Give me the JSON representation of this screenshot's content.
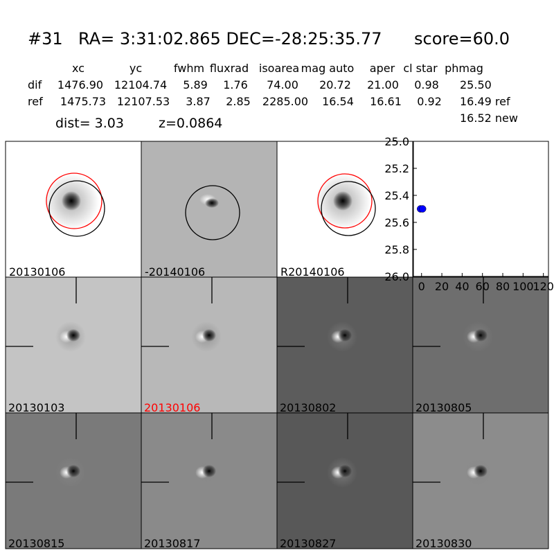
{
  "header": {
    "id": "#31",
    "coords": "RA= 3:31:02.865 DEC=-28:25:35.77",
    "score": "score=60.0"
  },
  "table": {
    "columns": [
      "xc",
      "yc",
      "fwhm",
      "fluxrad",
      "isoarea",
      "mag auto",
      "aper",
      "cl star",
      "phmag"
    ],
    "rows": [
      [
        "dif",
        "1476.90",
        "12104.74",
        "5.89",
        "1.76",
        "74.00",
        "20.72",
        "21.00",
        "0.98",
        "25.50"
      ],
      [
        "ref",
        "1475.73",
        "12107.53",
        "3.87",
        "2.85",
        "2285.00",
        "16.54",
        "16.61",
        "0.92",
        "16.49 ref"
      ]
    ],
    "extra": "16.52 new"
  },
  "dist": "dist=  3.03",
  "z": "z=0.0864",
  "stamps": [
    "20130106",
    "-20140106",
    "R20140106"
  ],
  "epochs": [
    {
      "label": "20130103",
      "color": "#000000"
    },
    {
      "label": "20130106",
      "color": "#ff0000"
    },
    {
      "label": "20130802",
      "color": "#000000"
    },
    {
      "label": "20130805",
      "color": "#000000"
    },
    {
      "label": "20130815",
      "color": "#000000"
    },
    {
      "label": "20130817",
      "color": "#000000"
    },
    {
      "label": "20130827",
      "color": "#000000"
    },
    {
      "label": "20130830",
      "color": "#000000"
    }
  ],
  "chart_data": {
    "type": "scatter",
    "x": [
      -1,
      1
    ],
    "y": [
      25.5,
      25.5
    ],
    "color": "#0000ff",
    "xlim": [
      -8,
      125
    ],
    "ylim": [
      26,
      25
    ],
    "xticks": [
      0,
      20,
      40,
      60,
      80,
      100,
      120
    ],
    "yticks": [
      {
        "value": 25,
        "label": "25.0"
      },
      25.2,
      25.4,
      25.6,
      25.8,
      {
        "value": 26,
        "label": "26.0"
      }
    ]
  }
}
